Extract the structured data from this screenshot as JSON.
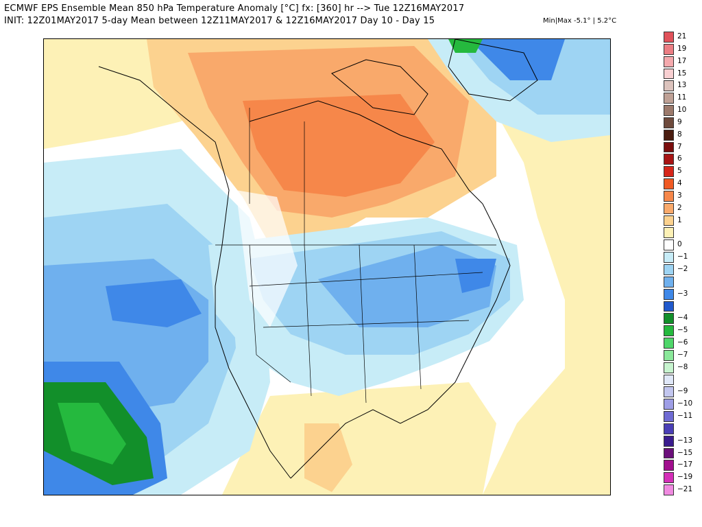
{
  "header": {
    "title_line1": "ECMWF EPS Ensemble Mean 850 hPa Temperature Anomaly [°C] fx: [360] hr --> Tue 12Z16MAY2017",
    "title_line2": "INIT: 12Z01MAY2017 5-day Mean between 12Z11MAY2017 & 12Z16MAY2017   Day 10 - Day 15",
    "minmax": "Min|Max -5.1° | 5.2°C"
  },
  "map": {
    "region": "North America",
    "field": "850 hPa temperature anomaly"
  },
  "legend": {
    "entries": [
      {
        "label": "21",
        "color": "#e0525a"
      },
      {
        "label": "19",
        "color": "#eb7e84"
      },
      {
        "label": "17",
        "color": "#f4a9ad"
      },
      {
        "label": "15",
        "color": "#f8cfd1"
      },
      {
        "label": "13",
        "color": "#dcc3bd"
      },
      {
        "label": "11",
        "color": "#bfa196"
      },
      {
        "label": "10",
        "color": "#9c7a6c"
      },
      {
        "label": "9",
        "color": "#6e4a3c"
      },
      {
        "label": "8",
        "color": "#4a1c10"
      },
      {
        "label": "7",
        "color": "#7a0e0e"
      },
      {
        "label": "6",
        "color": "#a81414"
      },
      {
        "label": "5",
        "color": "#d6261a"
      },
      {
        "label": "4",
        "color": "#f05a24"
      },
      {
        "label": "3",
        "color": "#f6874a"
      },
      {
        "label": "2",
        "color": "#f9a96b"
      },
      {
        "label": "1",
        "color": "#fcd28f"
      },
      {
        "label": "",
        "color": "#fdf1b6"
      },
      {
        "label": "0",
        "color": "#ffffff"
      },
      {
        "label": "−1",
        "color": "#c7ecf7"
      },
      {
        "label": "−2",
        "color": "#9ed4f3"
      },
      {
        "label": "",
        "color": "#6fb0ee"
      },
      {
        "label": "−3",
        "color": "#3f88e8"
      },
      {
        "label": "",
        "color": "#2159cc"
      },
      {
        "label": "−4",
        "color": "#128f2a"
      },
      {
        "label": "−5",
        "color": "#25b93e"
      },
      {
        "label": "−6",
        "color": "#4fd66a"
      },
      {
        "label": "−7",
        "color": "#8ae89a"
      },
      {
        "label": "−8",
        "color": "#c7f4cf"
      },
      {
        "label": "",
        "color": "#e0e8f8"
      },
      {
        "label": "−9",
        "color": "#c2c6ef"
      },
      {
        "label": "−10",
        "color": "#9e9ee6"
      },
      {
        "label": "−11",
        "color": "#6f6bd3"
      },
      {
        "label": "",
        "color": "#4a3fb6"
      },
      {
        "label": "−13",
        "color": "#3a1c8e"
      },
      {
        "label": "−15",
        "color": "#6b0f7a"
      },
      {
        "label": "−17",
        "color": "#a10f8e"
      },
      {
        "label": "−19",
        "color": "#d42fb8"
      },
      {
        "label": "−21",
        "color": "#f08ae0"
      }
    ]
  }
}
